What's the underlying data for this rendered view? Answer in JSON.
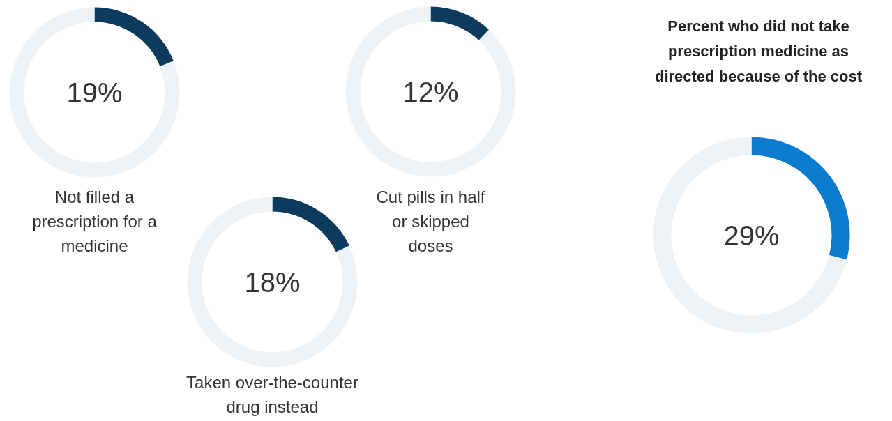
{
  "chart_data": [
    {
      "type": "donut",
      "categories": [
        null,
        null
      ],
      "values": [
        19,
        81
      ],
      "colors": [
        "#0d3b5e",
        "#eef2f5"
      ],
      "value_labels": [
        "19%",
        null
      ],
      "annotations": [
        "Not filled a\nprescription for a\nmedicine"
      ]
    },
    {
      "type": "donut",
      "categories": [
        null,
        null
      ],
      "values": [
        18,
        82
      ],
      "colors": [
        "#0d3b5e",
        "#eef2f5"
      ],
      "value_labels": [
        "18%",
        null
      ],
      "annotations": [
        "Taken over-the-counter\ndrug instead"
      ]
    },
    {
      "type": "donut",
      "categories": [
        null,
        null
      ],
      "values": [
        12,
        88
      ],
      "colors": [
        "#0d3b5e",
        "#eef2f5"
      ],
      "value_labels": [
        "12%",
        null
      ],
      "annotations": [
        "Cut pills in half\nor skipped\ndoses"
      ]
    },
    {
      "type": "donut",
      "title": "Percent who did not take\nprescription medicine as\ndirected because of the cost",
      "categories": [
        null,
        null
      ],
      "values": [
        29,
        71
      ],
      "colors": [
        "#0b7bd0",
        "#eef2f5"
      ],
      "value_labels": [
        "29%",
        null
      ]
    }
  ]
}
